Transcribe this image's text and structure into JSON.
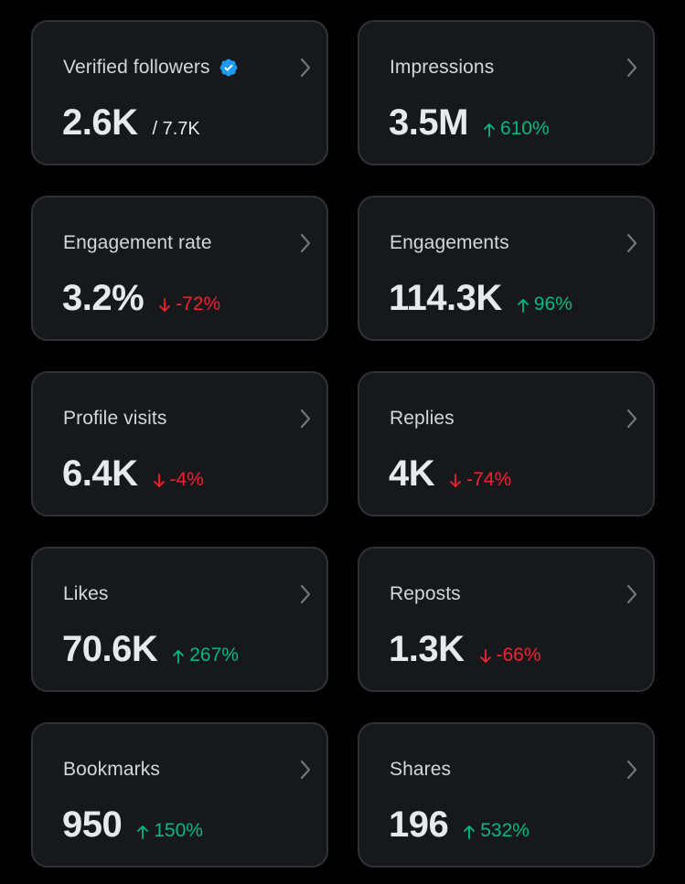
{
  "colors": {
    "up": "#00ba7c",
    "down": "#f4212e",
    "verified": "#1d9bf0"
  },
  "cards": [
    {
      "label": "Verified followers",
      "value": "2.6K",
      "total": "/ 7.7K",
      "verified": true
    },
    {
      "label": "Impressions",
      "value": "3.5M",
      "change": "610%",
      "direction": "up"
    },
    {
      "label": "Engagement rate",
      "value": "3.2%",
      "change": "-72%",
      "direction": "down"
    },
    {
      "label": "Engagements",
      "value": "114.3K",
      "change": "96%",
      "direction": "up"
    },
    {
      "label": "Profile visits",
      "value": "6.4K",
      "change": "-4%",
      "direction": "down"
    },
    {
      "label": "Replies",
      "value": "4K",
      "change": "-74%",
      "direction": "down"
    },
    {
      "label": "Likes",
      "value": "70.6K",
      "change": "267%",
      "direction": "up"
    },
    {
      "label": "Reposts",
      "value": "1.3K",
      "change": "-66%",
      "direction": "down"
    },
    {
      "label": "Bookmarks",
      "value": "950",
      "change": "150%",
      "direction": "up"
    },
    {
      "label": "Shares",
      "value": "196",
      "change": "532%",
      "direction": "up"
    }
  ]
}
